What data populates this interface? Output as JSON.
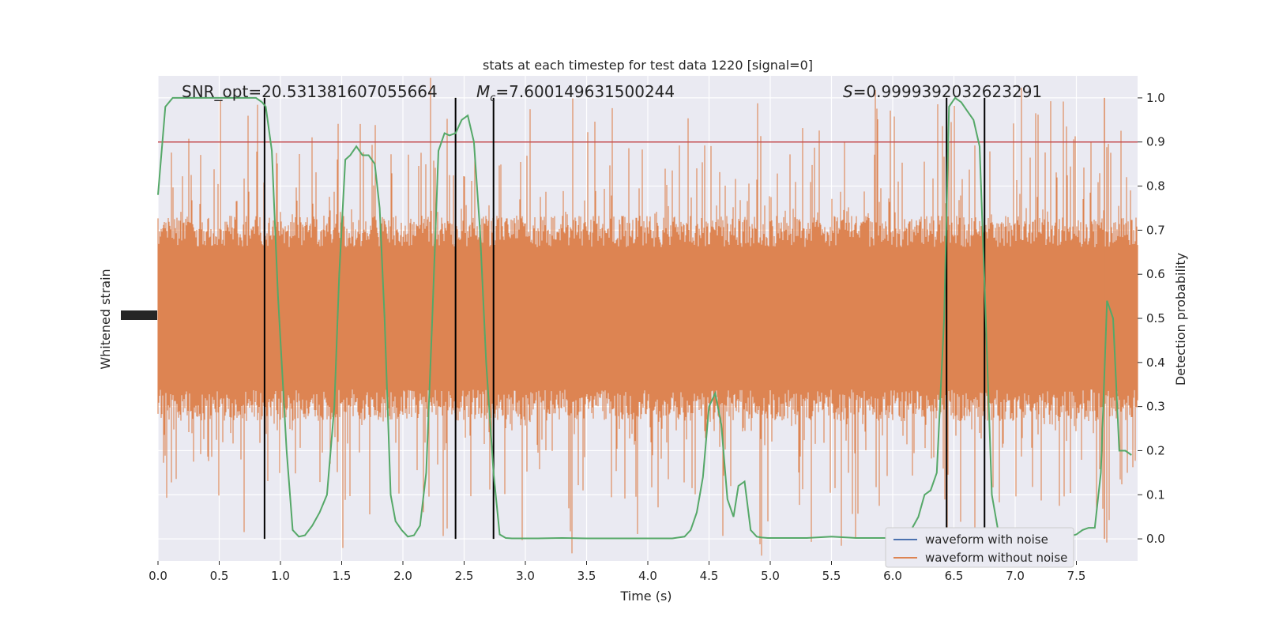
{
  "chart_data": {
    "type": "line",
    "title": "stats at each timestep for test data 1220 [signal=0]",
    "xlabel": "Time (s)",
    "ylabel_left": "Whitened strain",
    "ylabel_right": "Detection probability",
    "xlim": [
      0,
      8
    ],
    "ylim_right": [
      -0.05,
      1.05
    ],
    "grid": true,
    "x_ticks": [
      "0.0",
      "0.5",
      "1.0",
      "1.5",
      "2.0",
      "2.5",
      "3.0",
      "3.5",
      "4.0",
      "4.5",
      "5.0",
      "5.5",
      "6.0",
      "6.5",
      "7.0",
      "7.5"
    ],
    "y_right_ticks": [
      "0.0",
      "0.1",
      "0.2",
      "0.3",
      "0.4",
      "0.5",
      "0.6",
      "0.7",
      "0.8",
      "0.9",
      "1.0"
    ],
    "annotations": {
      "snr": "SNR_opt=20.531381607055664",
      "mc_symbol": "M",
      "mc_sub": "c",
      "mc_value": "=7.600149631500244",
      "s_symbol": "S",
      "s_value": "=0.9999392032623291"
    },
    "threshold": 0.9,
    "threshold_color": "#c44e52",
    "vertical_markers": [
      0.87,
      2.43,
      2.74,
      6.44,
      6.75
    ],
    "legend": {
      "placement": "lower-right",
      "entries": [
        {
          "label": "waveform with noise",
          "color": "#4c72b0"
        },
        {
          "label": "waveform without noise",
          "color": "#dd8452"
        }
      ]
    },
    "series": [
      {
        "color": "#55a868",
        "x": [
          0.0,
          0.06,
          0.12,
          0.2,
          0.3,
          0.4,
          0.5,
          0.6,
          0.7,
          0.8,
          0.85,
          0.88,
          0.93,
          0.98,
          1.05,
          1.1,
          1.15,
          1.2,
          1.26,
          1.32,
          1.38,
          1.44,
          1.48,
          1.53,
          1.57,
          1.62,
          1.67,
          1.72,
          1.77,
          1.81,
          1.85,
          1.9,
          1.94,
          1.99,
          2.04,
          2.09,
          2.14,
          2.19,
          2.24,
          2.29,
          2.34,
          2.38,
          2.43,
          2.48,
          2.53,
          2.58,
          2.63,
          2.68,
          2.74,
          2.79,
          2.84,
          2.89,
          2.94,
          3.0,
          3.1,
          3.3,
          3.5,
          3.7,
          3.9,
          4.1,
          4.2,
          4.3,
          4.35,
          4.4,
          4.45,
          4.5,
          4.55,
          4.6,
          4.65,
          4.7,
          4.74,
          4.79,
          4.84,
          4.89,
          4.93,
          4.98,
          5.05,
          5.3,
          5.5,
          5.7,
          5.9,
          6.1,
          6.15,
          6.21,
          6.26,
          6.31,
          6.36,
          6.42,
          6.46,
          6.51,
          6.56,
          6.61,
          6.66,
          6.71,
          6.76,
          6.81,
          6.86,
          6.9,
          6.95,
          7.0,
          7.1,
          7.2,
          7.3,
          7.4,
          7.5,
          7.55,
          7.6,
          7.65,
          7.7,
          7.75,
          7.8,
          7.85,
          7.9,
          7.95
        ],
        "y": [
          0.78,
          0.98,
          1.0,
          1.0,
          1.0,
          1.0,
          1.0,
          1.0,
          1.0,
          1.0,
          0.99,
          0.98,
          0.88,
          0.55,
          0.2,
          0.02,
          0.005,
          0.008,
          0.03,
          0.06,
          0.1,
          0.3,
          0.6,
          0.86,
          0.87,
          0.89,
          0.87,
          0.87,
          0.85,
          0.75,
          0.5,
          0.1,
          0.04,
          0.02,
          0.005,
          0.008,
          0.03,
          0.15,
          0.5,
          0.88,
          0.92,
          0.915,
          0.92,
          0.95,
          0.96,
          0.9,
          0.7,
          0.4,
          0.15,
          0.01,
          0.002,
          0.001,
          0.001,
          0.001,
          0.001,
          0.002,
          0.001,
          0.001,
          0.001,
          0.001,
          0.001,
          0.005,
          0.02,
          0.06,
          0.14,
          0.3,
          0.33,
          0.26,
          0.09,
          0.05,
          0.12,
          0.13,
          0.02,
          0.005,
          0.003,
          0.002,
          0.002,
          0.002,
          0.005,
          0.002,
          0.002,
          0.002,
          0.02,
          0.05,
          0.1,
          0.11,
          0.15,
          0.5,
          0.98,
          1.0,
          0.99,
          0.97,
          0.95,
          0.89,
          0.5,
          0.1,
          0.02,
          0.005,
          0.003,
          0.002,
          0.002,
          0.002,
          0.002,
          0.002,
          0.01,
          0.02,
          0.025,
          0.025,
          0.15,
          0.54,
          0.5,
          0.2,
          0.2,
          0.19
        ]
      }
    ]
  }
}
